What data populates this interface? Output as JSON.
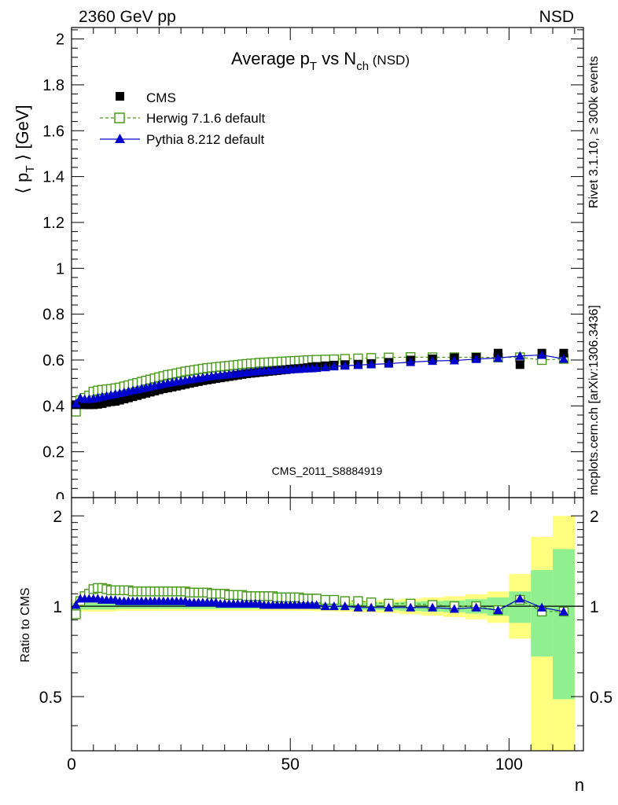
{
  "header": {
    "left": "2360 GeV pp",
    "right": "NSD",
    "side_rivet": "Rivet 3.1.10, ≥ 300k events",
    "side_mcplots": "mcplots.cern.ch [arXiv:1306.3436]"
  },
  "chart_data": [
    {
      "type": "scatter",
      "title_main": "Average p",
      "title_sub1": "T",
      "title_mid": " vs N",
      "title_sub2": "ch",
      "title_tail": " (NSD)",
      "ylabel_open": "⟨ p",
      "ylabel_sub": "T",
      "ylabel_close": " ⟩ [GeV]",
      "xlim": [
        0,
        117
      ],
      "ylim": [
        0,
        2.05
      ],
      "yticks": [
        0.2,
        0.4,
        0.6,
        0.8,
        1,
        1.2,
        1.4,
        1.6,
        1.8,
        2
      ],
      "ytick_labels": [
        "0.2",
        "0.4",
        "0.6",
        "0.8",
        "1",
        "1.2",
        "1.4",
        "1.6",
        "1.8",
        "2"
      ],
      "ylabel_zero_partial": "0",
      "watermark": "CMS_2011_S8884919",
      "legend": [
        {
          "name": "CMS",
          "marker": "filled-square",
          "color": "#000000"
        },
        {
          "name": "Herwig 7.1.6 default",
          "marker": "open-square",
          "color": "#4a9a1a",
          "line": "dashed"
        },
        {
          "name": "Pythia 8.212 default",
          "marker": "filled-triangle",
          "color": "#0000cc",
          "line": "solid"
        }
      ],
      "series": [
        {
          "name": "CMS",
          "x": [
            1,
            2,
            3,
            4,
            5,
            6,
            7,
            8,
            9,
            10,
            11,
            12,
            13,
            14,
            15,
            16,
            17,
            18,
            19,
            20,
            21,
            22,
            23,
            24,
            25,
            26,
            27,
            28,
            29,
            30,
            31,
            32,
            33,
            34,
            35,
            36,
            37,
            38,
            39,
            40,
            41,
            42,
            43,
            44,
            45,
            46,
            47,
            48,
            49,
            50,
            51,
            52,
            53,
            54,
            55,
            56,
            58,
            60,
            62.5,
            65.5,
            68.5,
            72.5,
            77.5,
            82.5,
            87.5,
            92.5,
            97.5,
            102.5,
            107.5,
            112.5
          ],
          "values": [
            0.405,
            0.41,
            0.405,
            0.405,
            0.405,
            0.407,
            0.41,
            0.415,
            0.418,
            0.42,
            0.425,
            0.43,
            0.435,
            0.44,
            0.445,
            0.45,
            0.455,
            0.46,
            0.465,
            0.47,
            0.475,
            0.478,
            0.482,
            0.486,
            0.49,
            0.494,
            0.498,
            0.502,
            0.506,
            0.51,
            0.513,
            0.516,
            0.519,
            0.522,
            0.525,
            0.528,
            0.531,
            0.534,
            0.537,
            0.54,
            0.542,
            0.544,
            0.546,
            0.548,
            0.55,
            0.552,
            0.554,
            0.556,
            0.558,
            0.56,
            0.562,
            0.563,
            0.565,
            0.567,
            0.57,
            0.572,
            0.575,
            0.578,
            0.58,
            0.582,
            0.585,
            0.59,
            0.6,
            0.605,
            0.61,
            0.612,
            0.63,
            0.58,
            0.63,
            0.63
          ]
        },
        {
          "name": "Herwig 7.1.6 default",
          "x": [
            1,
            2,
            3,
            4,
            5,
            6,
            7,
            8,
            9,
            10,
            11,
            12,
            13,
            14,
            15,
            16,
            17,
            18,
            19,
            20,
            21,
            22,
            23,
            24,
            25,
            26,
            27,
            28,
            29,
            30,
            31,
            32,
            33,
            34,
            35,
            36,
            37,
            38,
            39,
            40,
            41,
            42,
            43,
            44,
            45,
            46,
            47,
            48,
            49,
            50,
            51,
            52,
            53,
            54,
            55,
            56,
            58,
            60,
            62.5,
            65.5,
            68.5,
            72.5,
            77.5,
            82.5,
            87.5,
            92.5,
            97.5,
            102.5,
            107.5,
            112.5
          ],
          "values": [
            0.375,
            0.425,
            0.435,
            0.445,
            0.462,
            0.467,
            0.47,
            0.472,
            0.474,
            0.477,
            0.48,
            0.485,
            0.49,
            0.495,
            0.5,
            0.505,
            0.51,
            0.515,
            0.52,
            0.525,
            0.53,
            0.535,
            0.538,
            0.542,
            0.546,
            0.55,
            0.553,
            0.556,
            0.559,
            0.562,
            0.565,
            0.567,
            0.569,
            0.571,
            0.573,
            0.575,
            0.577,
            0.579,
            0.581,
            0.583,
            0.585,
            0.586,
            0.588,
            0.589,
            0.59,
            0.591,
            0.592,
            0.593,
            0.594,
            0.595,
            0.596,
            0.597,
            0.598,
            0.599,
            0.6,
            0.601,
            0.602,
            0.603,
            0.605,
            0.607,
            0.609,
            0.611,
            0.613,
            0.612,
            0.612,
            0.612,
            0.611,
            0.612,
            0.6,
            0.605
          ]
        },
        {
          "name": "Pythia 8.212 default",
          "x": [
            1,
            2,
            3,
            4,
            5,
            6,
            7,
            8,
            9,
            10,
            11,
            12,
            13,
            14,
            15,
            16,
            17,
            18,
            19,
            20,
            21,
            22,
            23,
            24,
            25,
            26,
            27,
            28,
            29,
            30,
            31,
            32,
            33,
            34,
            35,
            36,
            37,
            38,
            39,
            40,
            41,
            42,
            43,
            44,
            45,
            46,
            47,
            48,
            49,
            50,
            51,
            52,
            53,
            54,
            55,
            56,
            58,
            60,
            62.5,
            65.5,
            68.5,
            72.5,
            77.5,
            82.5,
            87.5,
            92.5,
            97.5,
            102.5,
            107.5,
            112.5
          ],
          "values": [
            0.41,
            0.435,
            0.43,
            0.43,
            0.432,
            0.436,
            0.44,
            0.444,
            0.448,
            0.452,
            0.456,
            0.46,
            0.464,
            0.468,
            0.472,
            0.476,
            0.48,
            0.484,
            0.488,
            0.492,
            0.496,
            0.5,
            0.503,
            0.506,
            0.509,
            0.512,
            0.515,
            0.518,
            0.521,
            0.524,
            0.527,
            0.53,
            0.532,
            0.534,
            0.536,
            0.538,
            0.54,
            0.542,
            0.544,
            0.546,
            0.548,
            0.55,
            0.552,
            0.553,
            0.554,
            0.555,
            0.556,
            0.557,
            0.558,
            0.559,
            0.56,
            0.561,
            0.562,
            0.563,
            0.564,
            0.565,
            0.568,
            0.572,
            0.575,
            0.578,
            0.581,
            0.584,
            0.591,
            0.596,
            0.598,
            0.604,
            0.609,
            0.618,
            0.622,
            0.605
          ]
        }
      ]
    },
    {
      "type": "scatter",
      "ylabel": "Ratio to CMS",
      "xlabel": "n",
      "xlim": [
        0,
        117
      ],
      "ylim": [
        0.33,
        2.3
      ],
      "xticks": [
        0,
        50,
        100
      ],
      "xtick_labels": [
        "0",
        "50",
        "100"
      ],
      "yticks": [
        0.5,
        1,
        2
      ],
      "ytick_labels": [
        "0.5",
        "1",
        "2"
      ],
      "bands": {
        "edges": [
          0,
          10,
          20,
          30,
          40,
          50,
          55,
          60,
          65,
          70,
          75,
          80,
          85,
          90,
          95,
          100,
          105,
          110,
          115
        ],
        "yellow_lo": [
          0.96,
          0.965,
          0.965,
          0.965,
          0.965,
          0.965,
          0.962,
          0.958,
          0.955,
          0.95,
          0.94,
          0.93,
          0.92,
          0.905,
          0.88,
          0.78,
          0.33,
          0.33
        ],
        "yellow_hi": [
          1.04,
          1.035,
          1.035,
          1.035,
          1.035,
          1.035,
          1.038,
          1.042,
          1.045,
          1.05,
          1.06,
          1.07,
          1.08,
          1.095,
          1.12,
          1.28,
          1.7,
          2.0
        ],
        "green_lo": [
          0.975,
          0.98,
          0.98,
          0.98,
          0.98,
          0.98,
          0.978,
          0.975,
          0.972,
          0.97,
          0.965,
          0.96,
          0.955,
          0.945,
          0.93,
          0.88,
          0.68,
          0.49
        ],
        "green_hi": [
          1.025,
          1.02,
          1.02,
          1.02,
          1.02,
          1.02,
          1.022,
          1.025,
          1.028,
          1.03,
          1.035,
          1.04,
          1.045,
          1.055,
          1.07,
          1.12,
          1.32,
          1.55
        ]
      },
      "series": [
        {
          "name": "Herwig 7.1.6 default",
          "x": [
            1,
            2,
            3,
            4,
            5,
            6,
            7,
            8,
            9,
            10,
            11,
            12,
            13,
            14,
            15,
            16,
            17,
            18,
            19,
            20,
            21,
            22,
            23,
            24,
            25,
            26,
            27,
            28,
            29,
            30,
            31,
            32,
            33,
            34,
            35,
            36,
            37,
            38,
            39,
            40,
            41,
            42,
            43,
            44,
            45,
            46,
            47,
            48,
            49,
            50,
            51,
            52,
            53,
            54,
            55,
            56,
            58,
            60,
            62.5,
            65.5,
            68.5,
            72.5,
            77.5,
            82.5,
            87.5,
            92.5,
            97.5,
            102.5,
            107.5,
            112.5
          ],
          "values": [
            0.94,
            1.04,
            1.08,
            1.1,
            1.14,
            1.15,
            1.15,
            1.14,
            1.13,
            1.13,
            1.13,
            1.13,
            1.13,
            1.12,
            1.12,
            1.12,
            1.12,
            1.12,
            1.12,
            1.12,
            1.12,
            1.12,
            1.12,
            1.12,
            1.12,
            1.12,
            1.11,
            1.11,
            1.11,
            1.11,
            1.11,
            1.1,
            1.1,
            1.1,
            1.1,
            1.09,
            1.09,
            1.09,
            1.09,
            1.08,
            1.08,
            1.08,
            1.08,
            1.08,
            1.08,
            1.08,
            1.07,
            1.07,
            1.07,
            1.07,
            1.07,
            1.07,
            1.06,
            1.06,
            1.06,
            1.06,
            1.05,
            1.05,
            1.04,
            1.04,
            1.03,
            1.02,
            1.02,
            1.01,
            1.0,
            1.0,
            0.97,
            1.05,
            0.96,
            0.96
          ]
        },
        {
          "name": "Pythia 8.212 default",
          "x": [
            1,
            2,
            3,
            4,
            5,
            6,
            7,
            8,
            9,
            10,
            11,
            12,
            13,
            14,
            15,
            16,
            17,
            18,
            19,
            20,
            21,
            22,
            23,
            24,
            25,
            26,
            27,
            28,
            29,
            30,
            31,
            32,
            33,
            34,
            35,
            36,
            37,
            38,
            39,
            40,
            41,
            42,
            43,
            44,
            45,
            46,
            47,
            48,
            49,
            50,
            51,
            52,
            53,
            54,
            55,
            56,
            58,
            60,
            62.5,
            65.5,
            68.5,
            72.5,
            77.5,
            82.5,
            87.5,
            92.5,
            97.5,
            102.5,
            107.5,
            112.5
          ],
          "values": [
            1.01,
            1.06,
            1.06,
            1.06,
            1.06,
            1.06,
            1.05,
            1.05,
            1.05,
            1.05,
            1.04,
            1.04,
            1.04,
            1.04,
            1.04,
            1.04,
            1.04,
            1.04,
            1.04,
            1.04,
            1.04,
            1.04,
            1.04,
            1.04,
            1.04,
            1.04,
            1.03,
            1.03,
            1.03,
            1.03,
            1.03,
            1.03,
            1.03,
            1.02,
            1.02,
            1.02,
            1.02,
            1.02,
            1.02,
            1.02,
            1.02,
            1.02,
            1.02,
            1.01,
            1.01,
            1.01,
            1.01,
            1.01,
            1.01,
            1.01,
            1.01,
            1.01,
            1.01,
            1.01,
            1.01,
            1.01,
            1.0,
            1.0,
            1.0,
            0.99,
            0.99,
            0.99,
            0.99,
            0.99,
            0.98,
            0.99,
            0.97,
            1.06,
            0.99,
            0.96
          ]
        }
      ]
    }
  ]
}
